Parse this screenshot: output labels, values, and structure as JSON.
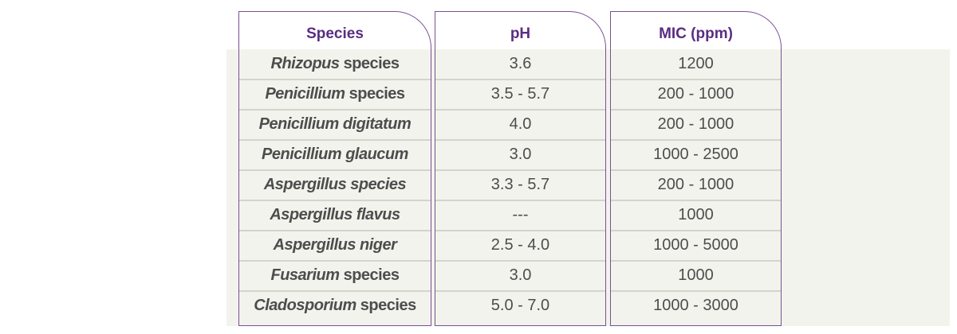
{
  "table": {
    "headers": [
      "Species",
      "pH",
      "MIC (ppm)"
    ],
    "rows": [
      {
        "species_italic": "Rhizopus",
        "species_rest": " species",
        "ph": "3.6",
        "mic": "1200"
      },
      {
        "species_italic": "Penicillium",
        "species_rest": " species",
        "ph": "3.5 - 5.7",
        "mic": "200 - 1000"
      },
      {
        "species_italic": "Penicillium digitatum",
        "species_rest": "",
        "ph": "4.0",
        "mic": "200 - 1000"
      },
      {
        "species_italic": "Penicillium glaucum",
        "species_rest": "",
        "ph": "3.0",
        "mic": "1000 - 2500"
      },
      {
        "species_italic": "Aspergillus species",
        "species_rest": "",
        "ph": "3.3 - 5.7",
        "mic": "200 - 1000"
      },
      {
        "species_italic": "Aspergillus flavus",
        "species_rest": "",
        "ph": "---",
        "mic": "1000"
      },
      {
        "species_italic": "Aspergillus niger",
        "species_rest": "",
        "ph": "2.5 - 4.0",
        "mic": "1000 - 5000"
      },
      {
        "species_italic": "Fusarium",
        "species_rest": " species",
        "ph": "3.0",
        "mic": "1000"
      },
      {
        "species_italic": "Cladosporium",
        "species_rest": " species",
        "ph": "5.0 - 7.0",
        "mic": "1000 - 3000"
      }
    ]
  },
  "colors": {
    "header_text": "#5a2d82",
    "border": "#7a4f94",
    "row_background": "#f3f3ed",
    "row_separator": "#d4d4cc",
    "cell_text": "#4d4d4d"
  }
}
